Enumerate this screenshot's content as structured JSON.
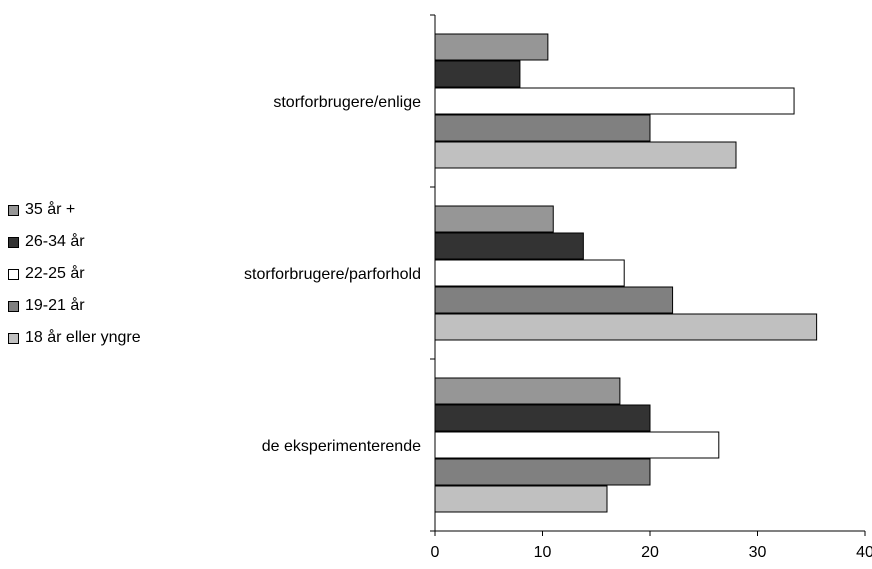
{
  "chart_data": {
    "type": "bar",
    "orientation": "horizontal",
    "categories": [
      "storforbrugere/enlige",
      "storforbrugere/parforhold",
      "de eksperimenterende"
    ],
    "series": [
      {
        "name": "35 år +",
        "color": "#969696",
        "values": [
          10.5,
          11,
          17.2
        ]
      },
      {
        "name": "26-34 år",
        "color": "#333333",
        "values": [
          7.9,
          13.8,
          20
        ]
      },
      {
        "name": "22-25 år",
        "color": "#ffffff",
        "values": [
          33.4,
          17.6,
          26.4
        ]
      },
      {
        "name": "19-21 år",
        "color": "#808080",
        "values": [
          20,
          22.1,
          20
        ]
      },
      {
        "name": "18 år eller yngre",
        "color": "#c0c0c0",
        "values": [
          28,
          35.5,
          16
        ]
      }
    ],
    "xlim": [
      0,
      40
    ],
    "xticks": [
      "0",
      "10",
      "20",
      "30",
      "40"
    ],
    "grid": false,
    "legend_position": "left"
  }
}
